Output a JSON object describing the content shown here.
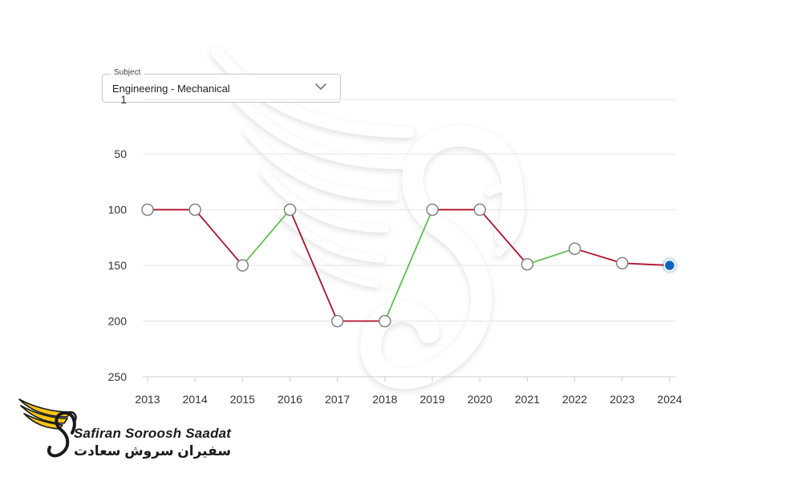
{
  "subject_select": {
    "legend": "Subject",
    "value": "Engineering - Mechanical"
  },
  "chart_data": {
    "type": "line",
    "x": [
      "2013",
      "2014",
      "2015",
      "2016",
      "2017",
      "2018",
      "2019",
      "2020",
      "2021",
      "2022",
      "2023",
      "2024"
    ],
    "series": [
      {
        "values": [
          100,
          100,
          150,
          100,
          200,
          200,
          100,
          100,
          149,
          135,
          148,
          150
        ]
      }
    ],
    "y_ticks": [
      "1",
      "50",
      "100",
      "150",
      "200",
      "250"
    ],
    "ylim": [
      1,
      250
    ],
    "y_inverted": true,
    "grid": true,
    "colors": {
      "up": "#5cc24d",
      "down": "#b0102a",
      "highlight": "#0a66c2",
      "marker_stroke": "#7a7a7a"
    }
  },
  "brand": {
    "name_en": "Safiran Soroosh Saadat",
    "name_fa": "سفیران سروش سعادت"
  }
}
